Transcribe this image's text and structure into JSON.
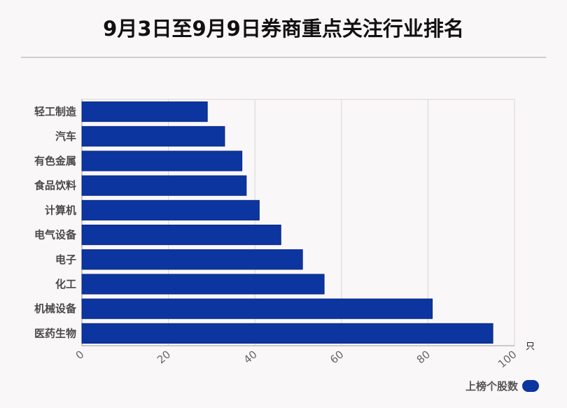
{
  "page": {
    "title": "9月3日至9月9日券商重点关注行业排名"
  },
  "colors": {
    "bar": "#0c35a0",
    "bar_stroke": "#0a2b85",
    "grid": "#d9d6d7",
    "background": "#faf7f8"
  },
  "chart_data": {
    "type": "bar",
    "orientation": "horizontal",
    "title": "9月3日至9月9日券商重点关注行业排名",
    "categories": [
      "轻工制造",
      "汽车",
      "有色金属",
      "食品饮料",
      "计算机",
      "电气设备",
      "电子",
      "化工",
      "机械设备",
      "医药生物"
    ],
    "series": [
      {
        "name": "上榜个股数",
        "values": [
          29,
          33,
          37,
          38,
          41,
          46,
          51,
          56,
          81,
          95
        ]
      }
    ],
    "xlim": [
      0,
      100
    ],
    "xticks": [
      0,
      20,
      40,
      60,
      80,
      100
    ],
    "xunit": "只",
    "grid": true,
    "legend_position": "bottom-right"
  }
}
